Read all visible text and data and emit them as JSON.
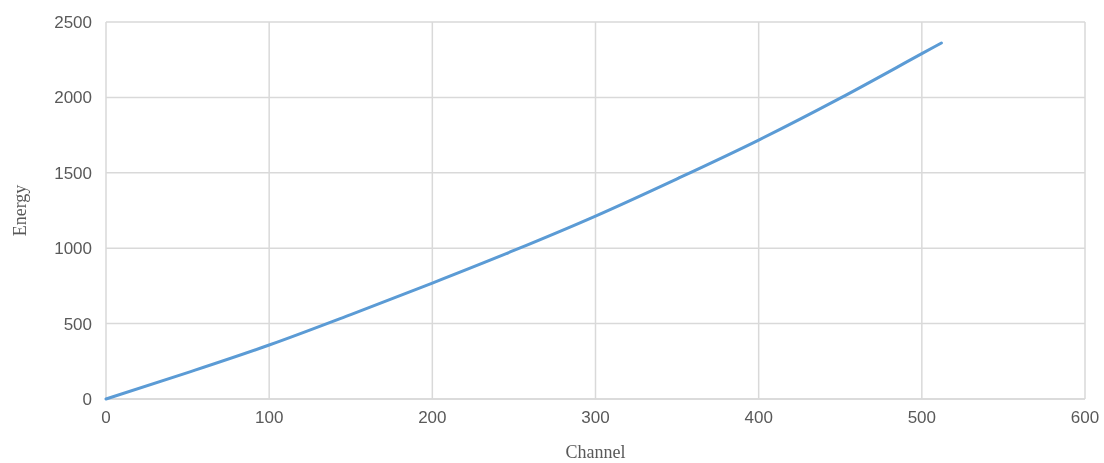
{
  "chart_data": {
    "type": "line",
    "xlabel": "Channel",
    "ylabel": "Energy",
    "x": [
      0,
      50,
      100,
      150,
      200,
      250,
      300,
      350,
      400,
      450,
      500,
      512
    ],
    "series": [
      {
        "color": "#5b9bd5",
        "values": [
          0,
          175,
          358,
          560,
          769,
          985,
          1213,
          1460,
          1717,
          1995,
          2290,
          2361
        ]
      }
    ],
    "xlim": [
      0,
      600
    ],
    "xticks": [
      0,
      100,
      200,
      300,
      400,
      500,
      600
    ],
    "ylim": [
      0,
      2500
    ],
    "yticks": [
      0,
      500,
      1000,
      1500,
      2000,
      2500
    ],
    "grid": true,
    "marker": "none",
    "line_style": "solid"
  }
}
